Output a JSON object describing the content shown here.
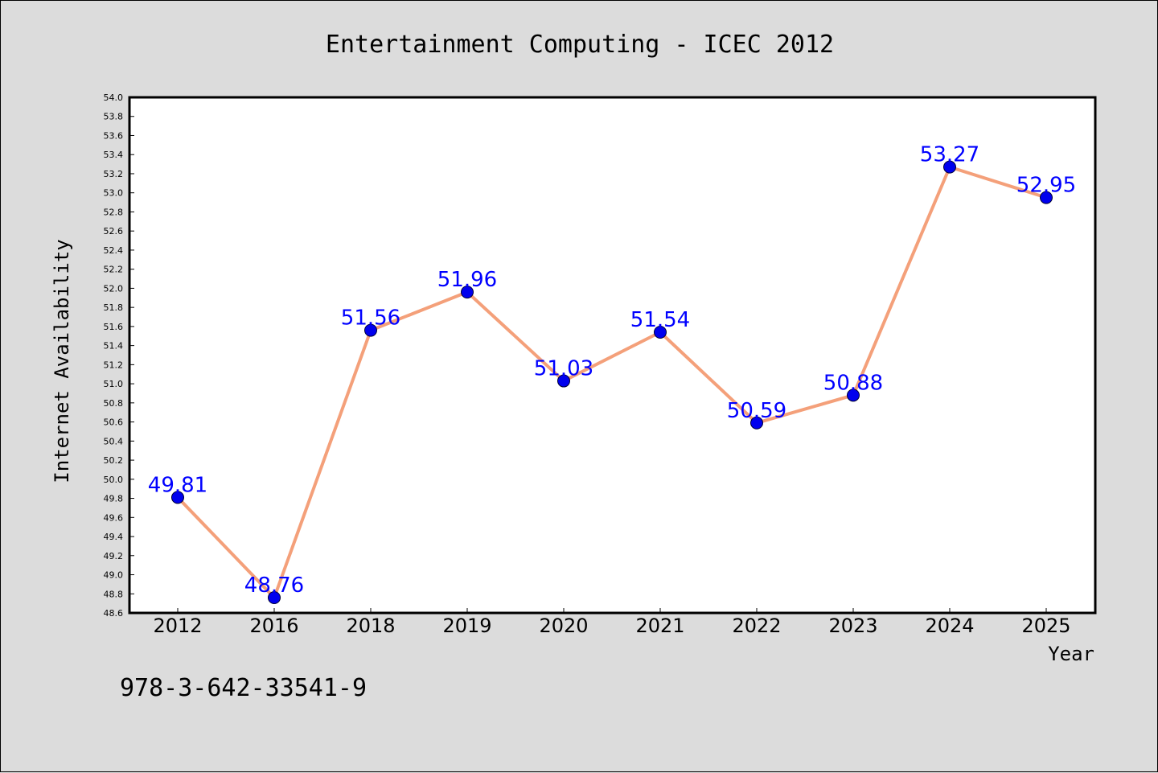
{
  "chart_data": {
    "type": "line",
    "title": "Entertainment Computing - ICEC 2012",
    "xlabel": "Year",
    "ylabel": "Internet Availability",
    "categories": [
      "2012",
      "2016",
      "2018",
      "2019",
      "2020",
      "2021",
      "2022",
      "2023",
      "2024",
      "2025"
    ],
    "series": [
      {
        "values": [
          49.81,
          48.76,
          51.56,
          51.96,
          51.03,
          51.54,
          50.59,
          50.88,
          53.27,
          52.95
        ],
        "data_labels": [
          "49.81",
          "48.76",
          "51.56",
          "51.96",
          "51.03",
          "51.54",
          "50.59",
          "50.88",
          "53.27",
          "52.95"
        ]
      }
    ],
    "ylim": [
      48.6,
      54.0
    ],
    "yticks": [
      "48.6",
      "48.8",
      "49.0",
      "49.2",
      "49.4",
      "49.6",
      "49.8",
      "50.0",
      "50.2",
      "50.4",
      "50.6",
      "50.8",
      "51.0",
      "51.2",
      "51.4",
      "51.6",
      "51.8",
      "52.0",
      "52.2",
      "52.4",
      "52.6",
      "52.8",
      "53.0",
      "53.2",
      "53.4",
      "53.6",
      "53.8",
      "54.0"
    ],
    "grid": false,
    "colors": {
      "line": "#f4a07a",
      "marker": "#0000ee",
      "label": "#0000ff",
      "background": "#dcdcdc",
      "plot_background": "#ffffff"
    }
  },
  "footnote": "978-3-642-33541-9"
}
